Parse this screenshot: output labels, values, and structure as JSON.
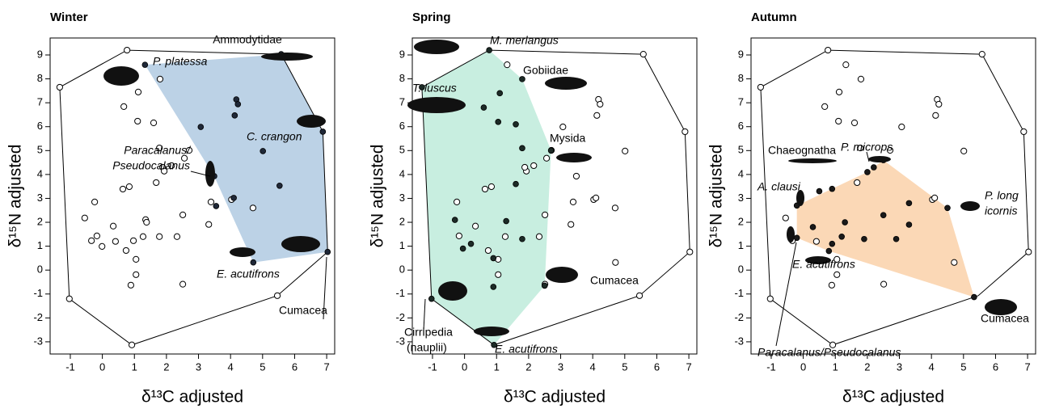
{
  "chart_data": [
    {
      "type": "scatter",
      "title": "Winter",
      "xlabel": "δ¹³C adjusted",
      "ylabel": "δ¹⁵N adjusted",
      "xlim": [
        -1.63,
        7.25
      ],
      "ylim": [
        -3.51,
        9.71
      ],
      "xticks": [
        -1,
        0,
        1,
        2,
        3,
        4,
        5,
        6,
        7
      ],
      "yticks": [
        -3,
        -2,
        -1,
        0,
        1,
        2,
        3,
        4,
        5,
        6,
        7,
        8,
        9
      ],
      "annotations": [
        "P. platessa",
        "Ammodytidae",
        "C. crangon",
        "Paracalanus/",
        "Pseudocalanus",
        "E. acutifrons",
        "Cumacea"
      ],
      "series": [
        {
          "type": "polygon",
          "color": "#bcd2e6",
          "x": [
            1.33,
            5.58,
            6.88,
            7.03,
            4.71,
            3.49
          ],
          "y": [
            8.59,
            9.03,
            5.79,
            0.76,
            0.32,
            3.93
          ]
        },
        {
          "type": "outline",
          "color": "#000000",
          "x": [
            0.77,
            5.58,
            6.88,
            7.03,
            5.46,
            0.92,
            -1.03,
            -1.33
          ],
          "y": [
            9.2,
            9.03,
            5.79,
            0.76,
            -1.07,
            -3.13,
            -1.2,
            7.65
          ]
        },
        {
          "type": "open",
          "color": "#000000",
          "x": [
            0.77,
            -1.33,
            -1.03,
            0.92,
            5.46,
            1.8,
            1.12,
            1.1,
            0.67,
            1.6,
            1.78,
            2.71,
            2.56,
            1.88,
            2.16,
            1.93,
            1.68,
            0.84,
            0.64,
            4.03,
            4.7,
            3.39,
            -0.24,
            -0.55,
            1.35,
            1.38,
            2.51,
            3.32,
            0.34,
            -0.17,
            1.78,
            2.33,
            1.27,
            -0.01,
            -0.34,
            0.41,
            0.97,
            0.74,
            1.05,
            1.05,
            0.89,
            2.51
          ],
          "y": [
            9.2,
            7.65,
            -1.2,
            -3.13,
            -1.07,
            7.99,
            7.45,
            6.23,
            6.84,
            6.16,
            5.11,
            5.01,
            4.68,
            4.3,
            4.37,
            4.14,
            3.66,
            3.49,
            3.39,
            2.95,
            2.6,
            2.85,
            2.85,
            2.18,
            2.11,
            2.0,
            2.31,
            1.91,
            1.84,
            1.43,
            1.4,
            1.4,
            1.4,
            0.99,
            1.23,
            1.2,
            1.23,
            0.82,
            0.45,
            -0.19,
            -0.63,
            -0.59
          ]
        },
        {
          "type": "filled",
          "color": "#1f2838",
          "x": [
            1.33,
            5.58,
            6.88,
            7.03,
            4.71,
            3.49,
            3.07,
            4.18,
            4.23,
            4.13,
            5.01,
            5.53,
            4.1,
            3.55
          ],
          "y": [
            8.59,
            9.03,
            5.79,
            0.76,
            0.32,
            3.93,
            5.99,
            7.14,
            6.94,
            6.47,
            4.98,
            3.53,
            3.02,
            2.68
          ]
        }
      ]
    },
    {
      "type": "scatter",
      "title": "Spring",
      "xlabel": "δ¹³C adjusted",
      "ylabel": "δ¹⁵N adjusted",
      "xlim": [
        -1.63,
        7.25
      ],
      "ylim": [
        -3.51,
        9.71
      ],
      "xticks": [
        -1,
        0,
        1,
        2,
        3,
        4,
        5,
        6,
        7
      ],
      "yticks": [
        -3,
        -2,
        -1,
        0,
        1,
        2,
        3,
        4,
        5,
        6,
        7,
        8,
        9
      ],
      "annotations": [
        "M. merlangus",
        "T. luscus",
        "Gobiidae",
        "Mysida",
        "Cumacea",
        "Cirripedia",
        "(nauplii)",
        "E. acutifrons"
      ],
      "series": [
        {
          "type": "polygon",
          "color": "#c8eee0",
          "x": [
            -1.33,
            0.77,
            1.8,
            2.7,
            2.5,
            0.92,
            -1.03
          ],
          "y": [
            7.65,
            9.2,
            7.99,
            5.0,
            -0.65,
            -3.13,
            -1.2
          ]
        },
        {
          "type": "outline",
          "color": "#000000",
          "x": [
            0.77,
            5.58,
            6.88,
            7.03,
            5.46,
            0.92,
            -1.03,
            -1.33
          ],
          "y": [
            9.2,
            9.03,
            5.79,
            0.76,
            -1.07,
            -3.13,
            -1.2,
            7.65
          ]
        },
        {
          "type": "open",
          "color": "#000000",
          "x": [
            5.58,
            6.88,
            7.03,
            5.46,
            1.33,
            4.18,
            4.23,
            4.13,
            3.07,
            5.01,
            2.71,
            2.16,
            1.93,
            1.88,
            2.56,
            3.49,
            0.84,
            0.64,
            4.03,
            4.1,
            4.7,
            3.39,
            -0.24,
            2.51,
            3.32,
            0.34,
            -0.17,
            2.33,
            1.27,
            0.74,
            4.71,
            1.05,
            1.05,
            2.51
          ],
          "y": [
            9.03,
            5.79,
            0.76,
            -1.07,
            8.59,
            7.14,
            6.94,
            6.47,
            5.99,
            4.98,
            5.01,
            4.37,
            4.14,
            4.3,
            4.68,
            3.93,
            3.49,
            3.39,
            2.95,
            3.02,
            2.6,
            2.85,
            2.85,
            2.31,
            1.91,
            1.84,
            1.43,
            1.4,
            1.4,
            0.82,
            0.32,
            0.45,
            -0.19,
            -0.59
          ]
        },
        {
          "type": "filled",
          "color": "#1c2a26",
          "x": [
            0.77,
            -1.33,
            1.8,
            2.7,
            2.5,
            0.92,
            -1.03,
            0.6,
            1.1,
            1.05,
            1.6,
            1.8,
            1.6,
            -0.3,
            1.3,
            0.2,
            -0.05,
            1.8,
            0.9,
            0.9
          ],
          "y": [
            9.2,
            7.65,
            7.99,
            5.0,
            -0.65,
            -3.13,
            -1.2,
            6.8,
            7.4,
            6.2,
            6.1,
            5.1,
            3.6,
            2.1,
            2.05,
            1.1,
            0.9,
            1.3,
            0.5,
            -0.7
          ]
        }
      ]
    },
    {
      "type": "scatter",
      "title": "Autumn",
      "xlabel": "δ¹³C adjusted",
      "ylabel": "δ¹⁵N adjusted",
      "xlim": [
        -1.63,
        7.25
      ],
      "ylim": [
        -3.51,
        9.71
      ],
      "xticks": [
        -1,
        0,
        1,
        2,
        3,
        4,
        5,
        6,
        7
      ],
      "yticks": [
        -3,
        -2,
        -1,
        0,
        1,
        2,
        3,
        4,
        5,
        6,
        7,
        8,
        9
      ],
      "annotations": [
        "Chaeognatha",
        "P. microps",
        "A. clausi",
        "P. long",
        "icornis",
        "E. acutifrons",
        "Cumacea",
        "Paracalanus/Pseudocalanus"
      ],
      "series": [
        {
          "type": "polygon",
          "color": "#fbd8b6",
          "x": [
            -0.2,
            2.0,
            2.5,
            4.5,
            5.33,
            0.8,
            -0.2
          ],
          "y": [
            2.7,
            4.1,
            4.6,
            2.6,
            -1.13,
            0.8,
            1.35
          ]
        },
        {
          "type": "outline",
          "color": "#000000",
          "x": [
            0.77,
            5.58,
            6.88,
            7.03,
            5.46,
            0.92,
            -1.03,
            -1.33
          ],
          "y": [
            9.2,
            9.03,
            5.79,
            0.76,
            -1.07,
            -3.13,
            -1.2,
            7.65
          ]
        },
        {
          "type": "open",
          "color": "#000000",
          "x": [
            0.77,
            5.58,
            6.88,
            7.03,
            0.92,
            -1.03,
            -1.33,
            1.33,
            1.8,
            1.12,
            1.1,
            0.67,
            1.6,
            3.07,
            4.18,
            4.23,
            4.13,
            5.01,
            1.78,
            2.71,
            1.68,
            4.03,
            4.1,
            -0.55,
            -0.34,
            0.41,
            4.71,
            1.05,
            1.05,
            0.89,
            2.51
          ],
          "y": [
            9.2,
            9.03,
            5.79,
            0.76,
            -3.13,
            -1.2,
            7.65,
            8.59,
            7.99,
            7.45,
            6.23,
            6.84,
            6.16,
            5.99,
            7.14,
            6.94,
            6.47,
            4.98,
            5.11,
            5.01,
            3.66,
            2.95,
            3.02,
            2.18,
            1.23,
            1.2,
            0.32,
            0.45,
            -0.19,
            -0.63,
            -0.59
          ]
        },
        {
          "type": "filled",
          "color": "#1a1a1a",
          "x": [
            5.33,
            4.5,
            2.5,
            2.0,
            2.2,
            -0.2,
            -0.2,
            0.8,
            0.5,
            0.9,
            1.3,
            0.3,
            0.9,
            1.2,
            1.9,
            2.5,
            3.3,
            3.3,
            2.9
          ],
          "y": [
            -1.13,
            2.6,
            4.6,
            4.1,
            4.3,
            2.7,
            1.35,
            0.8,
            3.3,
            3.4,
            2.0,
            1.8,
            1.1,
            1.4,
            1.3,
            2.3,
            2.8,
            1.9,
            1.3
          ]
        }
      ]
    }
  ]
}
